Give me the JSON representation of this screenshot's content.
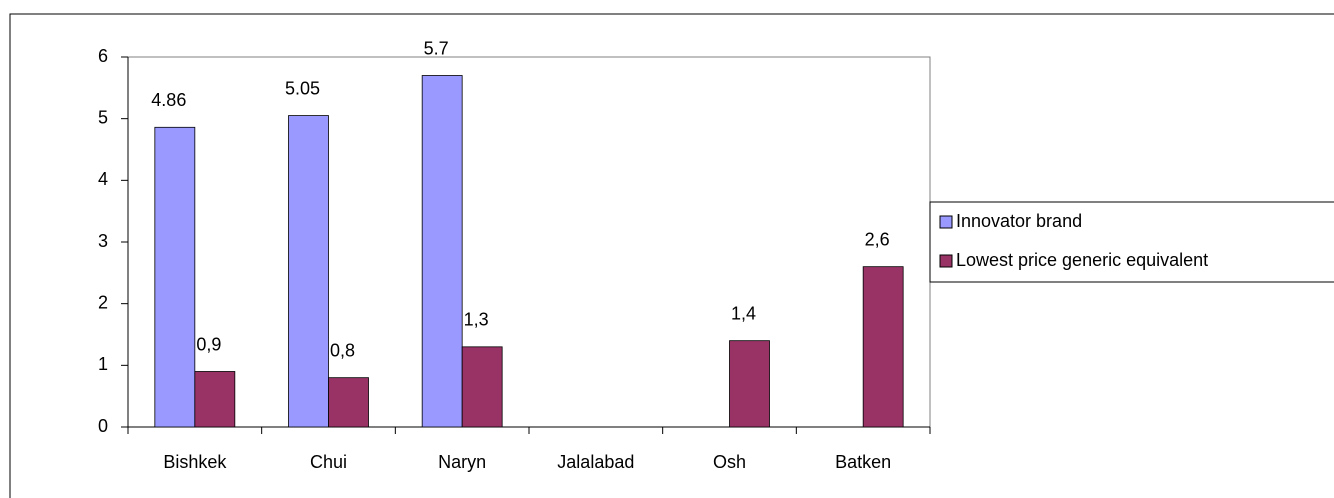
{
  "chart_data": {
    "type": "bar",
    "categories": [
      "Bishkek",
      "Chui",
      "Naryn",
      "Jalalabad",
      "Osh",
      "Batken"
    ],
    "series": [
      {
        "name": "Innovator brand",
        "color": "#9999ff",
        "values": [
          4.86,
          5.05,
          5.7,
          null,
          null,
          null
        ]
      },
      {
        "name": "Lowest price generic equivalent",
        "color": "#993366",
        "values": [
          0.9,
          0.8,
          1.3,
          null,
          1.4,
          2.6
        ],
        "value_labels": [
          "0,9",
          "0,8",
          "1,3",
          null,
          "1,4",
          "2,6"
        ]
      }
    ],
    "ylim": [
      0,
      6
    ],
    "yticks": [
      0,
      1,
      2,
      3,
      4,
      5,
      6
    ],
    "legend": "right"
  }
}
